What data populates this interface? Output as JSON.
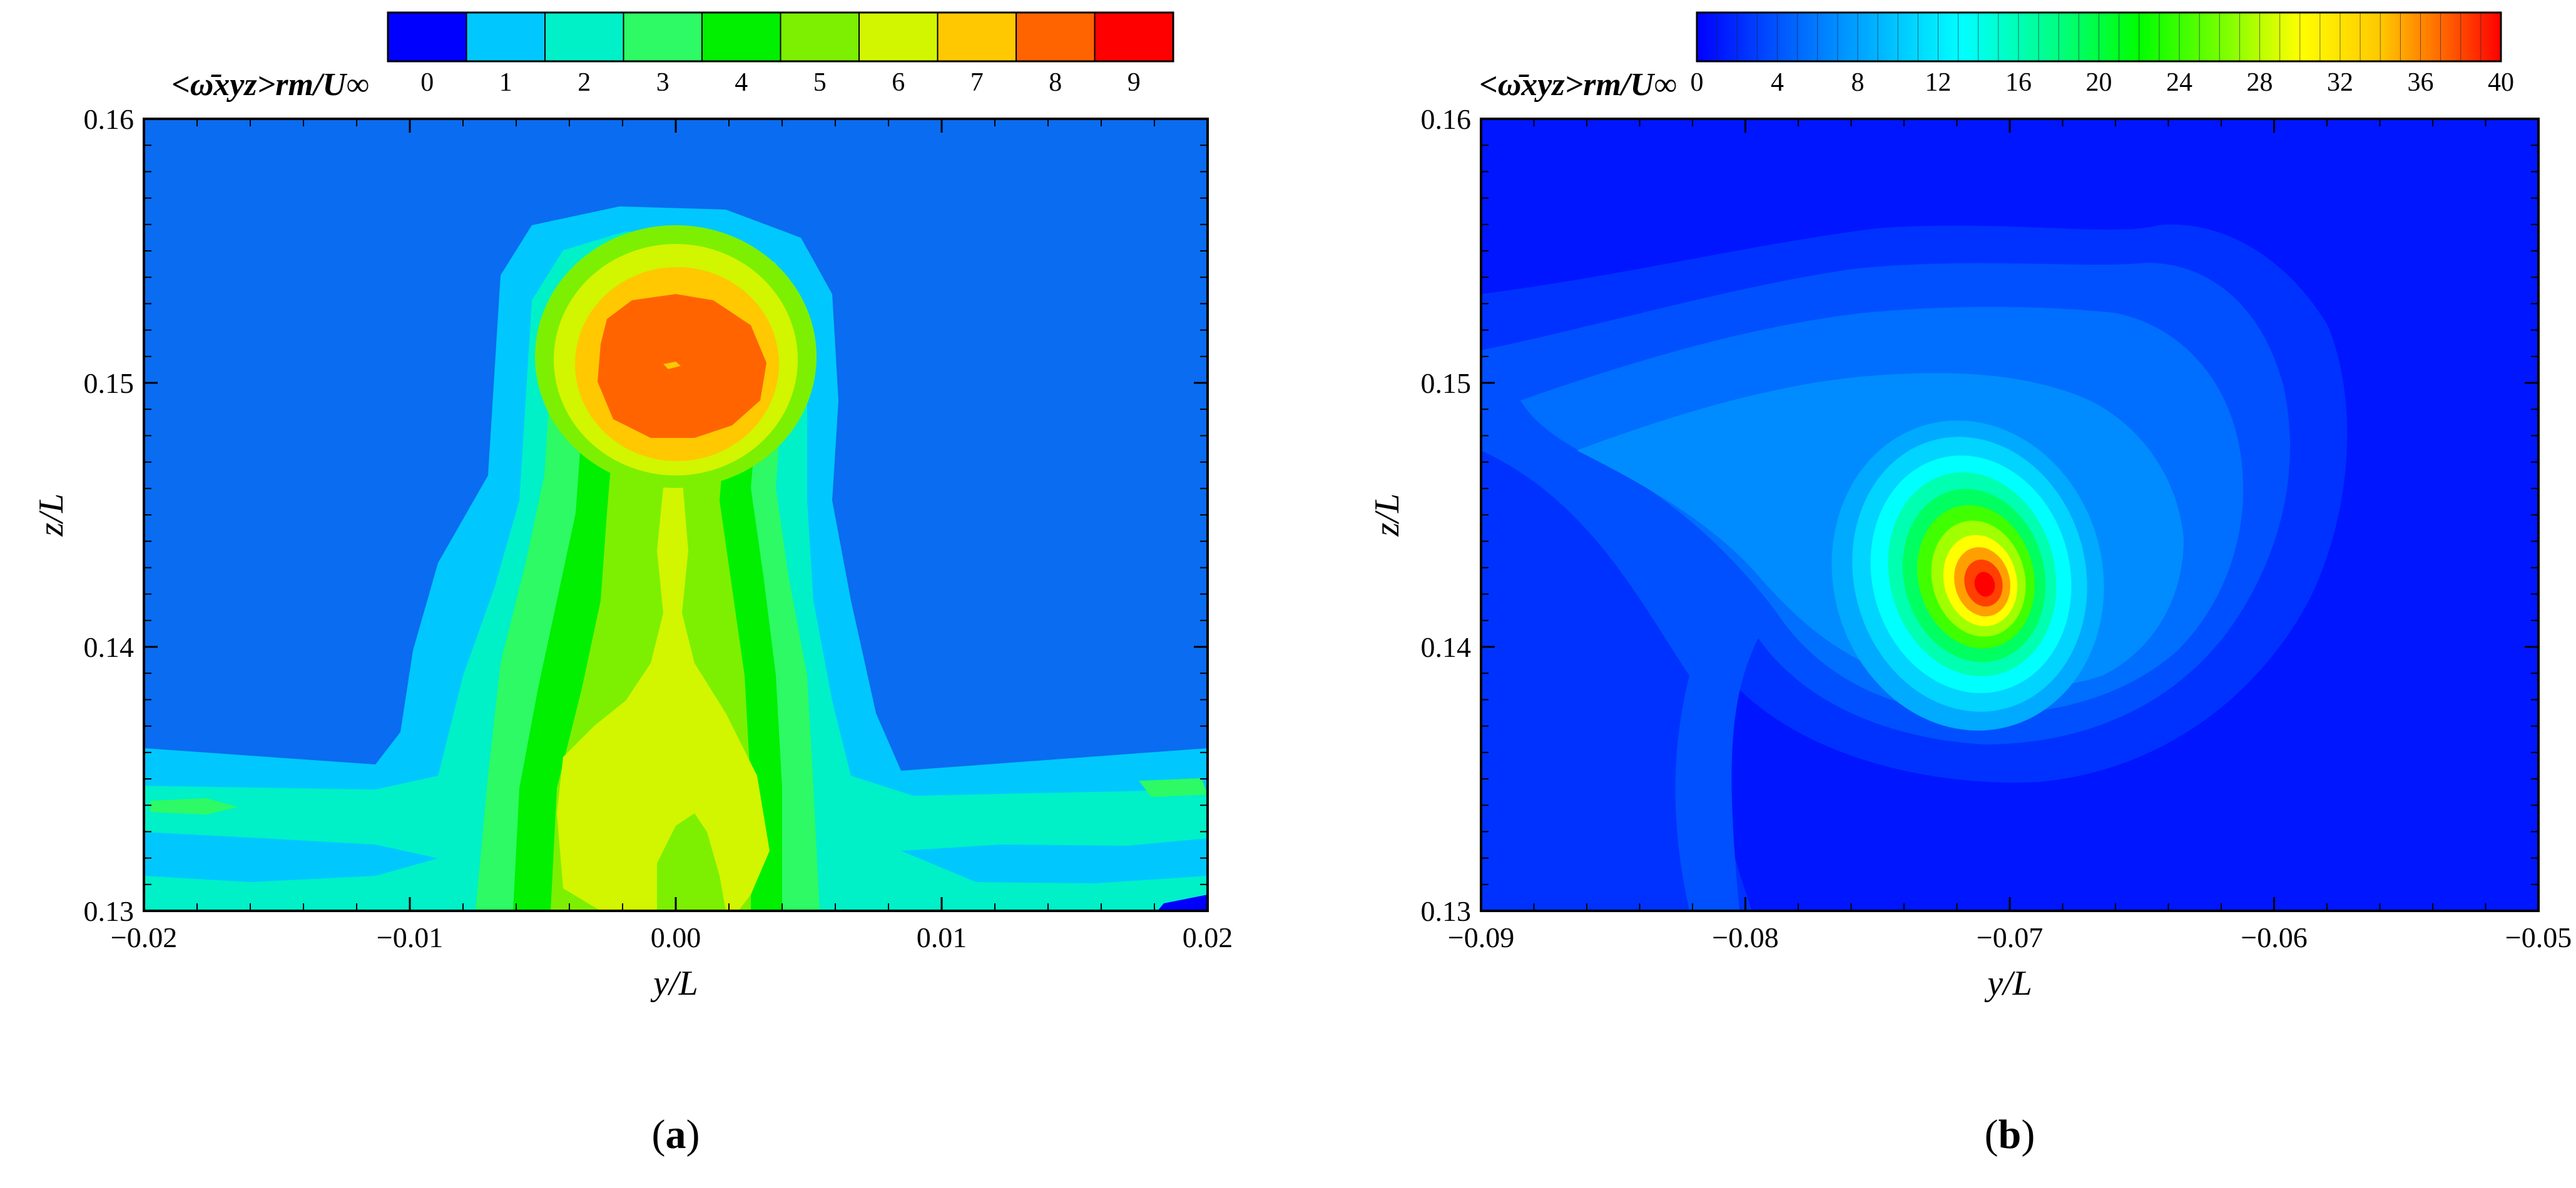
{
  "chart_data": [
    {
      "type": "heatmap",
      "panel_label": "(a)",
      "panel_letter": "a",
      "xlabel": "y/L",
      "ylabel": "z/L",
      "colorbar_title": "<ω̄xyz>rm/U∞",
      "xlim": [
        -0.02,
        0.02
      ],
      "ylim": [
        0.13,
        0.16
      ],
      "x_ticks": [
        -0.02,
        -0.01,
        0.0,
        0.01,
        0.02
      ],
      "x_tick_labels": [
        "−0.02",
        "−0.01",
        "0.00",
        "0.01",
        "0.02"
      ],
      "y_ticks": [
        0.13,
        0.14,
        0.15,
        0.16
      ],
      "y_tick_labels": [
        "0.13",
        "0.14",
        "0.15",
        "0.16"
      ],
      "colorbar_range": [
        -0.5,
        9.5
      ],
      "colorbar_ticks": [
        0,
        1,
        2,
        3,
        4,
        5,
        6,
        7,
        8,
        9
      ],
      "colorbar_colors": [
        "#0000ff",
        "#0a6cf0",
        "#00c8ff",
        "#00f0c8",
        "#2dfa64",
        "#00f000",
        "#7cf000",
        "#d2f500",
        "#ffc800",
        "#ff6400",
        "#ff0000"
      ],
      "background_value": 0.7,
      "features": [
        {
          "kind": "vortex-core",
          "y": 0.0004,
          "z": 0.151,
          "peak": 8.7
        },
        {
          "kind": "stem",
          "y": 0.0,
          "z_from": 0.13,
          "z_to": 0.148,
          "level": 6.3
        },
        {
          "kind": "boundary-layer",
          "z_top": 0.1355,
          "level": 2.4
        }
      ]
    },
    {
      "type": "heatmap",
      "panel_label": "(b)",
      "panel_letter": "b",
      "xlabel": "y/L",
      "ylabel": "z/L",
      "colorbar_title": "<ω̄xyz>rm/U∞",
      "xlim": [
        -0.09,
        -0.05
      ],
      "ylim": [
        0.13,
        0.16
      ],
      "x_ticks": [
        -0.09,
        -0.08,
        -0.07,
        -0.06,
        -0.05
      ],
      "x_tick_labels": [
        "−0.09",
        "−0.08",
        "−0.07",
        "−0.06",
        "−0.05"
      ],
      "y_ticks": [
        0.13,
        0.14,
        0.15,
        0.16
      ],
      "y_tick_labels": [
        "0.13",
        "0.14",
        "0.15",
        "0.16"
      ],
      "colorbar_range": [
        0,
        40
      ],
      "colorbar_ticks": [
        0,
        4,
        8,
        12,
        16,
        20,
        24,
        28,
        32,
        36,
        40
      ],
      "colorbar_colors": [
        "#0000ff",
        "#0064ff",
        "#00c8ff",
        "#00ffff",
        "#00ff80",
        "#00ff00",
        "#80ff00",
        "#ffff00",
        "#ffc800",
        "#ff6400",
        "#ff0000"
      ],
      "background_value": 1.0,
      "features": [
        {
          "kind": "vortex-core",
          "y": -0.0708,
          "z": 0.1425,
          "peak": 39
        },
        {
          "kind": "spiral-arm",
          "y": -0.075,
          "z": 0.147,
          "level": 5
        }
      ]
    }
  ]
}
